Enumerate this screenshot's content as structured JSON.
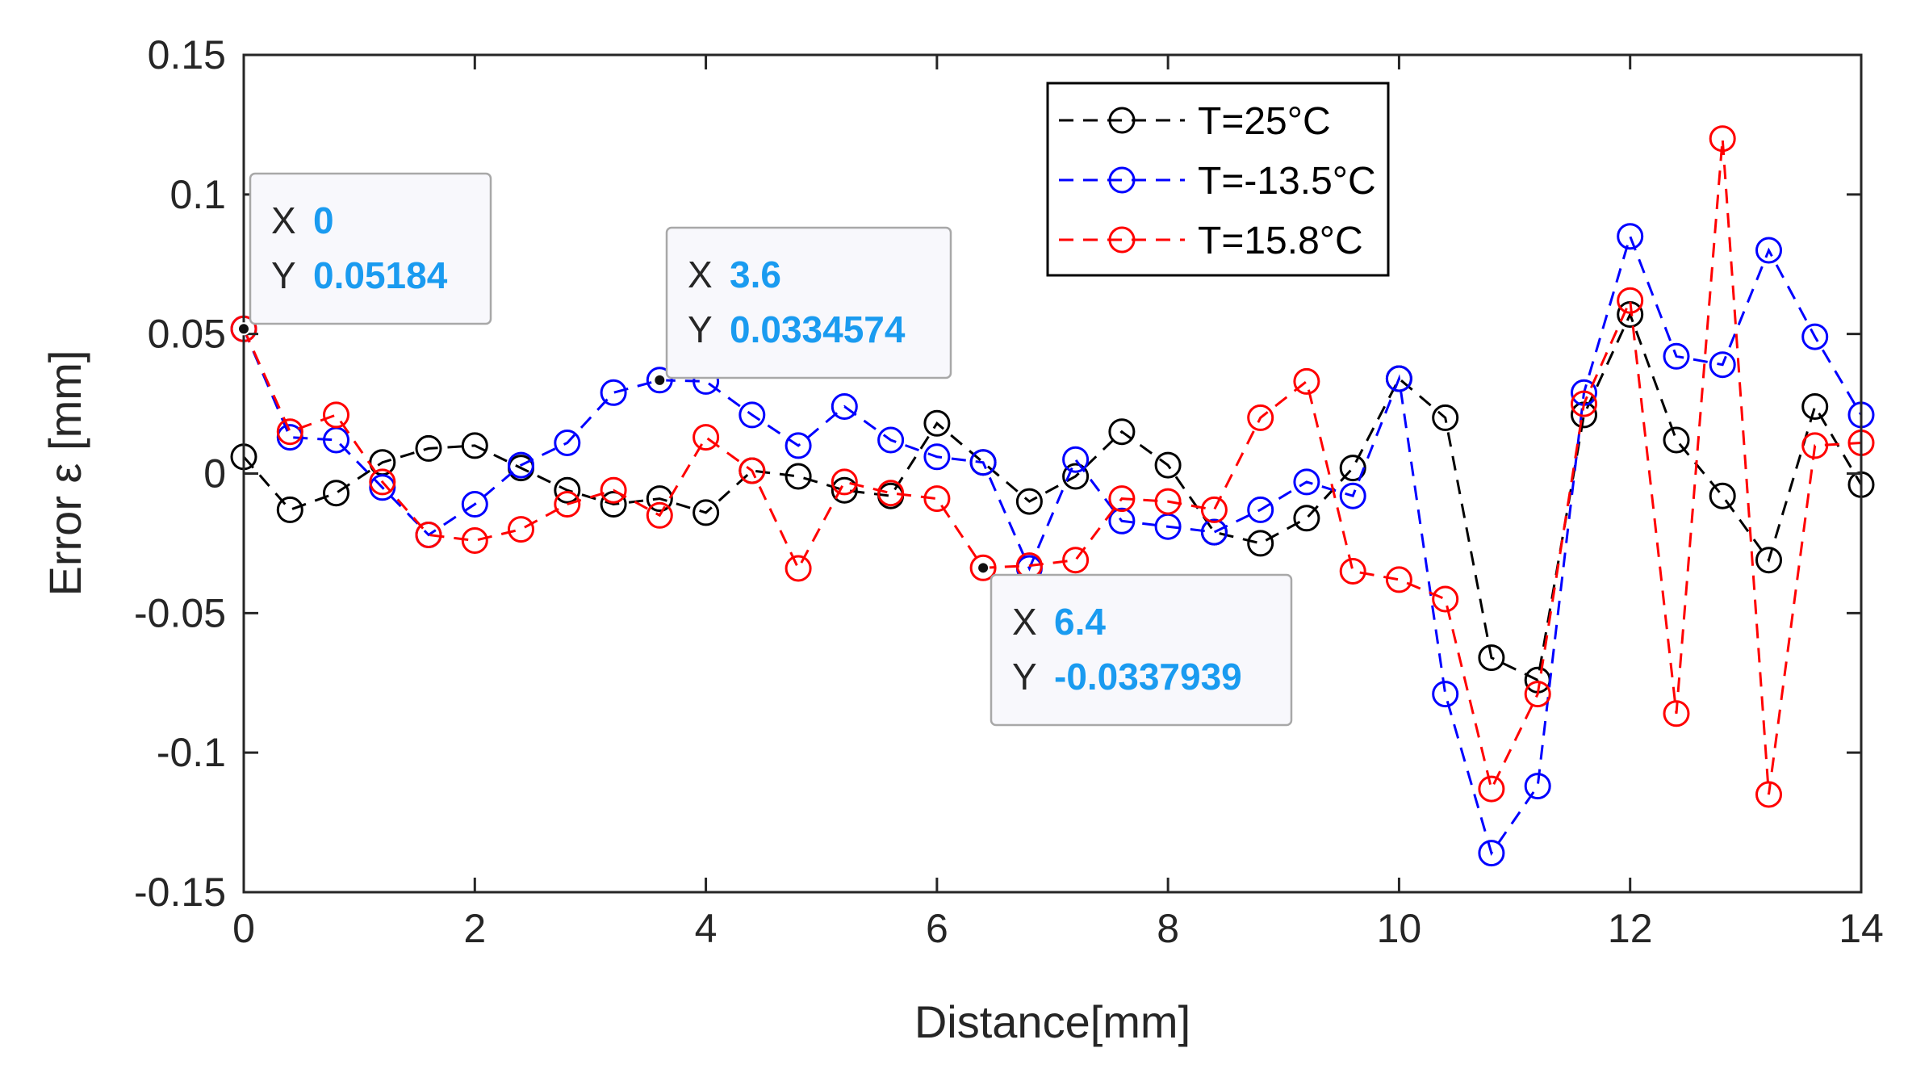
{
  "chart_data": {
    "type": "line",
    "title": "",
    "xlabel": "Distance[mm]",
    "ylabel": "Error ε  [mm]",
    "xlim": [
      0,
      14
    ],
    "ylim": [
      -0.15,
      0.15
    ],
    "xticks": [
      0,
      2,
      4,
      6,
      8,
      10,
      12,
      14
    ],
    "xtick_labels": [
      "0",
      "2",
      "4",
      "6",
      "8",
      "10",
      "12",
      "14"
    ],
    "yticks": [
      -0.15,
      -0.1,
      -0.05,
      0,
      0.05,
      0.1,
      0.15
    ],
    "ytick_labels": [
      "-0.15",
      "-0.1",
      "-0.05",
      "0",
      "0.05",
      "0.1",
      "0.15"
    ],
    "grid": false,
    "legend_position": "top-center",
    "x": [
      0,
      0.4,
      0.8,
      1.2,
      1.6,
      2.0,
      2.4,
      2.8,
      3.2,
      3.6,
      4.0,
      4.4,
      4.8,
      5.2,
      5.6,
      6.0,
      6.4,
      6.8,
      7.2,
      7.6,
      8.0,
      8.4,
      8.8,
      9.2,
      9.6,
      10.0,
      10.4,
      10.8,
      11.2,
      11.6,
      12.0,
      12.4,
      12.8,
      13.2,
      13.6,
      14.0
    ],
    "series": [
      {
        "name": "T=25°C",
        "color": "#000000",
        "values": [
          0.006,
          -0.013,
          -0.007,
          0.004,
          0.009,
          0.01,
          0.002,
          -0.006,
          -0.011,
          -0.009,
          -0.014,
          0.001,
          -0.001,
          -0.006,
          -0.008,
          0.018,
          0.004,
          -0.01,
          -0.001,
          0.015,
          0.003,
          -0.021,
          -0.025,
          -0.016,
          0.002,
          0.034,
          0.02,
          -0.066,
          -0.074,
          0.021,
          0.057,
          0.012,
          -0.008,
          -0.031,
          0.024,
          -0.004
        ]
      },
      {
        "name": "T=-13.5°C",
        "color": "#0000ff",
        "values": [
          0.05184,
          0.013,
          0.012,
          -0.005,
          -0.022,
          -0.011,
          0.003,
          0.011,
          0.029,
          0.0334574,
          0.033,
          0.021,
          0.01,
          0.024,
          0.012,
          0.006,
          0.004,
          -0.034,
          0.005,
          -0.017,
          -0.019,
          -0.021,
          -0.013,
          -0.003,
          -0.008,
          0.034,
          -0.079,
          -0.136,
          -0.112,
          0.029,
          0.085,
          0.042,
          0.039,
          0.08,
          0.049,
          0.021
        ]
      },
      {
        "name": "T=15.8°C",
        "color": "#ff0000",
        "values": [
          0.05184,
          0.015,
          0.021,
          -0.003,
          -0.022,
          -0.024,
          -0.02,
          -0.011,
          -0.006,
          -0.015,
          0.013,
          0.001,
          -0.034,
          -0.003,
          -0.007,
          -0.009,
          -0.0337939,
          -0.033,
          -0.031,
          -0.009,
          -0.01,
          -0.013,
          0.02,
          0.033,
          -0.035,
          -0.038,
          -0.045,
          -0.113,
          -0.079,
          0.025,
          0.062,
          -0.086,
          0.12,
          -0.115,
          0.01,
          0.011
        ]
      }
    ],
    "datatips": [
      {
        "x_key": "X",
        "y_key": "Y",
        "x_value": "0",
        "y_value": "0.05184",
        "x": 0,
        "y": 0.05184
      },
      {
        "x_key": "X",
        "y_key": "Y",
        "x_value": "3.6",
        "y_value": "0.0334574",
        "x": 3.6,
        "y": 0.0334574
      },
      {
        "x_key": "X",
        "y_key": "Y",
        "x_value": "6.4",
        "y_value": "-0.0337939",
        "x": 6.4,
        "y": -0.0337939
      }
    ]
  }
}
